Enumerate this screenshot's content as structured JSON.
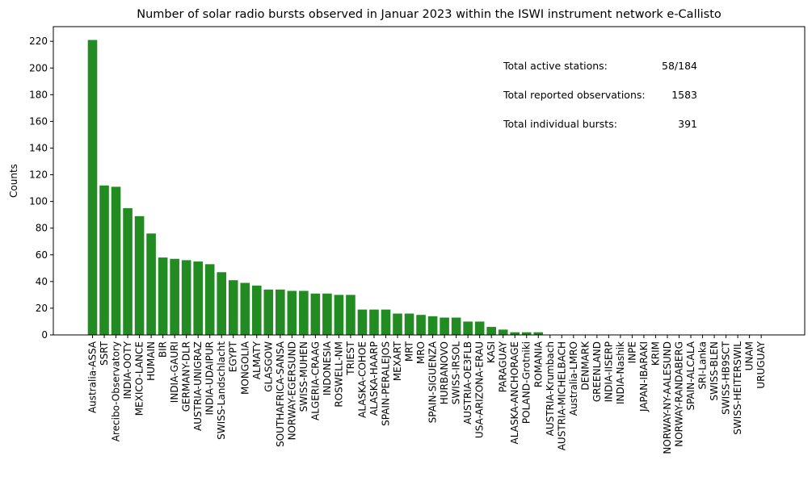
{
  "chart_data": {
    "type": "bar",
    "title": "Number of solar radio bursts observed in Januar 2023 within the ISWI instrument network e-Callisto",
    "xlabel": "",
    "ylabel": "Counts",
    "ylim": [
      0,
      231
    ],
    "yticks": [
      0,
      20,
      40,
      60,
      80,
      100,
      120,
      140,
      160,
      180,
      200,
      220
    ],
    "bar_color": "#228b22",
    "grid": false,
    "legend": "none",
    "categories": [
      "Australia-ASSA",
      "SSRT",
      "Arecibo-Observatory",
      "INDIA-OOTY",
      "MEXICO-LANCE",
      "HUMAIN",
      "BIR",
      "INDIA-GAURI",
      "GERMANY-DLR",
      "AUSTRIA-UNIGRAZ",
      "INDIA-UDAIPUR",
      "SWISS-Landschlacht",
      "EGYPT",
      "MONGOLIA",
      "ALMATY",
      "GLASGOW",
      "SOUTHAFRICA-SANSA",
      "NORWAY-EGERSUND",
      "SWISS-MUHEN",
      "ALGERIA-CRAAG",
      "INDONESIA",
      "ROSWELL-NM",
      "TRIEST",
      "ALASKA-COHOE",
      "ALASKA-HAARP",
      "SPAIN-PERALEJOS",
      "MEXART",
      "MRT",
      "MRO",
      "SPAIN-SIGUENZA",
      "HURBANOVO",
      "SWISS-IRSOL",
      "AUSTRIA-OE3FLB",
      "USA-ARIZONA-ERAU",
      "KASI",
      "PARAGUAY",
      "ALASKA-ANCHORAGE",
      "POLAND-Grotniki",
      "ROMANIA",
      "AUSTRIA-Krumbach",
      "AUSTRIA-MICHELBACH",
      "Australia-LMRO",
      "DENMARK",
      "GREENLAND",
      "INDIA-IISERP",
      "INDIA-Nashik",
      "INPE",
      "JAPAN-IBARAKI",
      "KRIM",
      "NORWAY-NY-AALESUND",
      "NORWAY-RANDABERG",
      "SPAIN-ALCALA",
      "SRI-Lanka",
      "SWISS-BLEN",
      "SWISS-HB9SCT",
      "SWISS-HEITERSWIL",
      "UNAM",
      "URUGUAY"
    ],
    "values": [
      221,
      112,
      111,
      95,
      89,
      76,
      58,
      57,
      56,
      55,
      53,
      47,
      41,
      39,
      37,
      34,
      34,
      33,
      33,
      31,
      31,
      30,
      30,
      19,
      19,
      19,
      16,
      16,
      15,
      14,
      13,
      13,
      10,
      10,
      6,
      4,
      2,
      2,
      2,
      0,
      0,
      0,
      0,
      0,
      0,
      0,
      0,
      0,
      0,
      0,
      0,
      0,
      0,
      0,
      0,
      0,
      0,
      0
    ],
    "annotations": [
      {
        "label": "Total active stations:",
        "value": "58/184"
      },
      {
        "label": "Total reported observations:",
        "value": "1583"
      },
      {
        "label": "Total individual bursts:",
        "value": "391"
      }
    ]
  }
}
